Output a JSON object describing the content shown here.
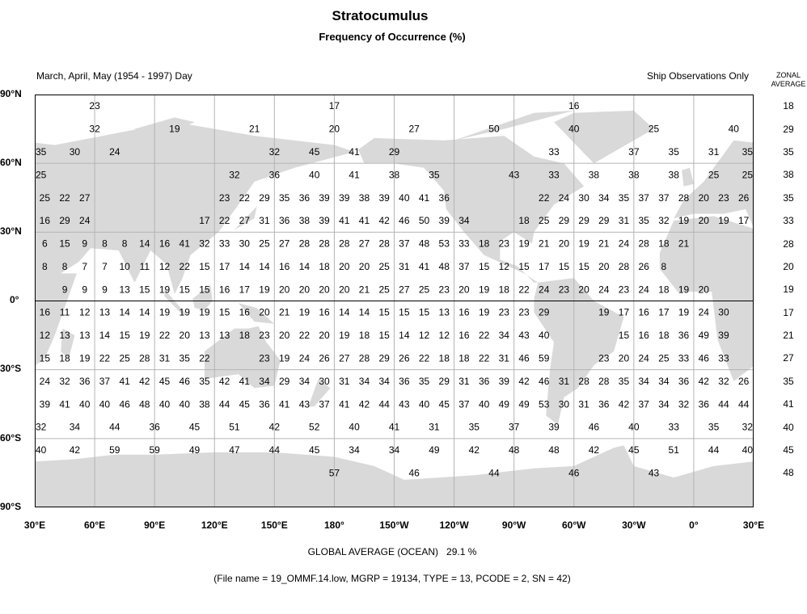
{
  "title": "Stratocumulus",
  "subtitle": "Frequency of Occurrence (%)",
  "season_label": "March, April, May (1954 - 1997) Day",
  "source_label": "Ship Observations Only",
  "zonal_header": [
    "ZONAL",
    "AVERAGE"
  ],
  "lat_labels": [
    "90°N",
    "60°N",
    "30°N",
    "0°",
    "30°S",
    "60°S",
    "90°S"
  ],
  "lon_labels": [
    "30°E",
    "60°E",
    "90°E",
    "120°E",
    "150°E",
    "180°",
    "150°W",
    "120°W",
    "90°W",
    "60°W",
    "30°W",
    "0°",
    "30°E"
  ],
  "global_average": {
    "label": "GLOBAL AVERAGE (OCEAN)",
    "value": "29.1 %"
  },
  "footer": "(File name = 19_OMMF.14.low, MGRP = 19134, TYPE = 13, PCODE = 2, SN = 42)",
  "colors": {
    "land": "#d9d9d9",
    "grid": "#b4b4b4",
    "equator": "#000000",
    "text": "#000000"
  },
  "chart_data": {
    "type": "map-grid",
    "variable": "Stratocumulus frequency of occurrence (%)",
    "lon_range": [
      "30°E",
      "30°E"
    ],
    "lat_range": [
      "90°S",
      "90°N"
    ],
    "grid": true,
    "zonal_average": [
      18,
      29,
      35,
      38,
      35,
      33,
      28,
      20,
      19,
      17,
      21,
      27,
      35,
      41,
      40,
      45,
      48
    ],
    "rows": [
      {
        "lat_band": "80°N-90°N",
        "lat_center": 85,
        "cell_width_deg": 120,
        "first_center_lon": 60,
        "values": [
          23,
          17,
          16
        ]
      },
      {
        "lat_band": "70°N-80°N",
        "lat_center": 75,
        "cell_width_deg": 40,
        "first_center_lon": 60,
        "values": [
          32,
          19,
          21,
          20,
          27,
          50,
          40,
          25,
          40
        ]
      },
      {
        "lat_band": "60°N-70°N",
        "lat_center": 65,
        "cell_width_deg": 20,
        "first_center_lon": 30,
        "values": [
          35,
          30,
          24,
          null,
          null,
          null,
          32,
          45,
          41,
          29,
          null,
          null,
          null,
          33,
          null,
          37,
          35,
          31
        ]
      },
      {
        "lat_band": "50°N-60°N",
        "lat_center": 55,
        "cell_width_deg": 20,
        "first_center_lon": 30,
        "values": [
          25,
          null,
          null,
          null,
          null,
          32,
          36,
          40,
          41,
          38,
          35,
          null,
          43,
          33,
          38,
          38,
          38,
          25
        ]
      },
      {
        "lat_band": "40°N-50°N",
        "lat_center": 45,
        "cell_width_deg": 10,
        "first_center_lon": 35,
        "values": [
          25,
          22,
          27,
          null,
          null,
          null,
          null,
          null,
          null,
          23,
          22,
          29,
          35,
          36,
          39,
          39,
          38,
          39,
          40,
          41,
          36,
          null,
          null,
          null,
          null,
          22,
          24,
          30,
          34,
          35,
          37,
          37,
          28,
          20,
          23,
          26
        ]
      },
      {
        "lat_band": "30°N-40°N",
        "lat_center": 35,
        "cell_width_deg": 10,
        "first_center_lon": 35,
        "values": [
          16,
          29,
          24,
          null,
          null,
          null,
          null,
          null,
          17,
          22,
          27,
          31,
          36,
          38,
          39,
          41,
          41,
          42,
          46,
          50,
          39,
          34,
          null,
          null,
          18,
          25,
          29,
          29,
          29,
          31,
          35,
          32,
          19,
          20,
          19,
          17
        ]
      },
      {
        "lat_band": "20°N-30°N",
        "lat_center": 25,
        "cell_width_deg": 10,
        "first_center_lon": 35,
        "values": [
          6,
          15,
          9,
          8,
          8,
          14,
          16,
          41,
          32,
          33,
          30,
          25,
          27,
          28,
          28,
          28,
          27,
          28,
          37,
          48,
          53,
          33,
          18,
          23,
          19,
          21,
          20,
          19,
          21,
          24,
          28,
          18,
          21,
          null,
          null,
          null
        ]
      },
      {
        "lat_band": "10°N-20°N",
        "lat_center": 15,
        "cell_width_deg": 10,
        "first_center_lon": 35,
        "values": [
          8,
          8,
          7,
          7,
          10,
          11,
          12,
          22,
          15,
          17,
          14,
          14,
          16,
          14,
          18,
          20,
          20,
          25,
          31,
          41,
          48,
          37,
          15,
          12,
          15,
          17,
          15,
          15,
          20,
          28,
          26,
          8,
          null,
          null,
          null,
          null
        ]
      },
      {
        "lat_band": "0°-10°N",
        "lat_center": 5,
        "cell_width_deg": 10,
        "first_center_lon": 35,
        "values": [
          null,
          9,
          9,
          9,
          13,
          15,
          19,
          15,
          15,
          16,
          17,
          19,
          20,
          20,
          20,
          20,
          21,
          25,
          27,
          25,
          23,
          20,
          19,
          18,
          22,
          24,
          23,
          20,
          24,
          23,
          24,
          18,
          19,
          20,
          null,
          null
        ]
      },
      {
        "lat_band": "0°-10°S",
        "lat_center": -5,
        "cell_width_deg": 10,
        "first_center_lon": 35,
        "values": [
          16,
          11,
          12,
          13,
          14,
          14,
          19,
          19,
          19,
          15,
          16,
          20,
          21,
          19,
          16,
          14,
          14,
          15,
          15,
          15,
          13,
          16,
          19,
          23,
          23,
          29,
          null,
          null,
          19,
          17,
          16,
          17,
          19,
          24,
          30,
          null
        ]
      },
      {
        "lat_band": "10°S-20°S",
        "lat_center": -15,
        "cell_width_deg": 10,
        "first_center_lon": 35,
        "values": [
          12,
          13,
          13,
          14,
          15,
          19,
          22,
          20,
          13,
          13,
          18,
          23,
          20,
          22,
          20,
          19,
          18,
          15,
          14,
          12,
          12,
          16,
          22,
          34,
          43,
          40,
          null,
          null,
          null,
          15,
          16,
          18,
          36,
          49,
          39,
          null
        ]
      },
      {
        "lat_band": "20°S-30°S",
        "lat_center": -25,
        "cell_width_deg": 10,
        "first_center_lon": 35,
        "values": [
          15,
          18,
          19,
          22,
          25,
          28,
          31,
          35,
          22,
          null,
          null,
          23,
          19,
          24,
          26,
          27,
          28,
          29,
          26,
          22,
          18,
          18,
          22,
          31,
          46,
          59,
          null,
          null,
          23,
          20,
          24,
          25,
          33,
          46,
          33,
          null
        ]
      },
      {
        "lat_band": "30°S-40°S",
        "lat_center": -35,
        "cell_width_deg": 10,
        "first_center_lon": 35,
        "values": [
          24,
          32,
          36,
          37,
          41,
          42,
          45,
          46,
          35,
          42,
          41,
          34,
          29,
          34,
          30,
          31,
          34,
          34,
          36,
          35,
          29,
          31,
          36,
          39,
          42,
          46,
          31,
          28,
          28,
          35,
          34,
          34,
          36,
          42,
          32,
          26
        ]
      },
      {
        "lat_band": "40°S-50°S",
        "lat_center": -45,
        "cell_width_deg": 10,
        "first_center_lon": 35,
        "values": [
          39,
          41,
          40,
          40,
          46,
          48,
          40,
          40,
          38,
          44,
          45,
          36,
          41,
          43,
          37,
          41,
          42,
          44,
          43,
          40,
          45,
          37,
          40,
          49,
          49,
          53,
          30,
          31,
          36,
          42,
          37,
          34,
          32,
          36,
          44,
          44
        ]
      },
      {
        "lat_band": "50°S-60°S",
        "lat_center": -55,
        "cell_width_deg": 20,
        "first_center_lon": 30,
        "values": [
          32,
          34,
          44,
          36,
          45,
          51,
          42,
          52,
          40,
          41,
          31,
          35,
          37,
          39,
          46,
          40,
          33,
          35
        ]
      },
      {
        "lat_band": "60°S-70°S",
        "lat_center": -65,
        "cell_width_deg": 20,
        "first_center_lon": 30,
        "values": [
          40,
          42,
          59,
          59,
          49,
          47,
          44,
          45,
          34,
          34,
          49,
          42,
          48,
          48,
          42,
          45,
          51,
          44
        ]
      },
      {
        "lat_band": "70°S-80°S",
        "lat_center": -75,
        "cell_width_deg": 40,
        "first_center_lon": 60,
        "values": [
          null,
          null,
          null,
          57,
          46,
          44,
          46,
          43,
          null
        ]
      }
    ]
  }
}
